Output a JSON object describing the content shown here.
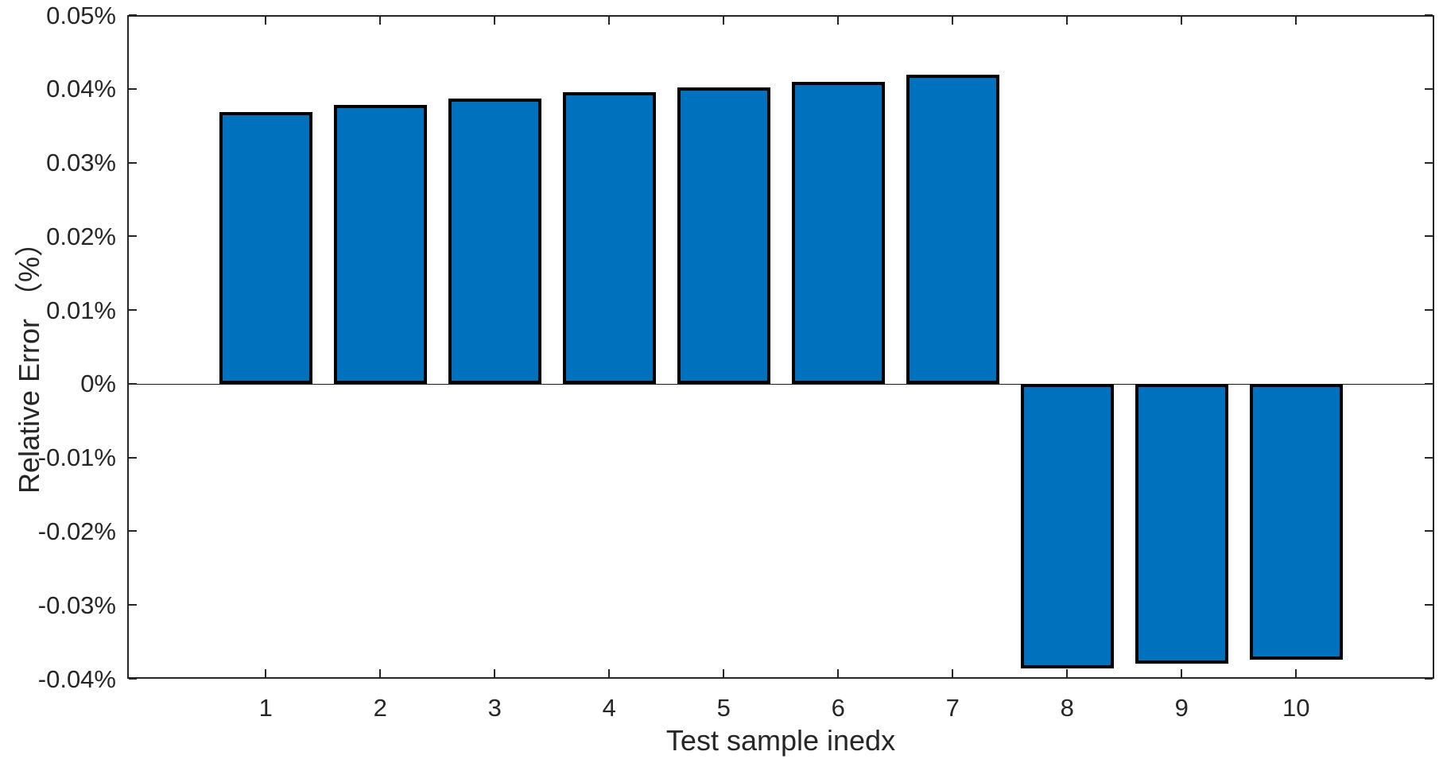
{
  "chart_data": {
    "type": "bar",
    "title": "",
    "xlabel": "Test sample inedx",
    "ylabel": "Relative Error （%）",
    "categories": [
      "1",
      "2",
      "3",
      "4",
      "5",
      "6",
      "7",
      "8",
      "9",
      "10"
    ],
    "values": [
      0.0368,
      0.0378,
      0.0387,
      0.0395,
      0.0402,
      0.041,
      0.0419,
      -0.0386,
      -0.038,
      -0.0374
    ],
    "value_unit": "percent",
    "ylim": [
      -0.04,
      0.05
    ],
    "ytick_values": [
      0.05,
      0.04,
      0.03,
      0.02,
      0.01,
      0,
      -0.01,
      -0.02,
      -0.03,
      -0.04
    ],
    "ytick_labels": [
      "0.05%",
      "0.04%",
      "0.03%",
      "0.02%",
      "0.01%",
      "0%",
      "-0.01%",
      "-0.02%",
      "-0.03%",
      "-0.04%"
    ],
    "xtick_labels": [
      "1",
      "2",
      "3",
      "4",
      "5",
      "6",
      "7",
      "8",
      "9",
      "10"
    ],
    "bar_color": "#0072BD",
    "bar_edge_color": "#000000",
    "axis_color": "#262626",
    "background_color": "#FFFFFF",
    "grid": false,
    "legend": null,
    "baseline": 0,
    "box": true
  }
}
